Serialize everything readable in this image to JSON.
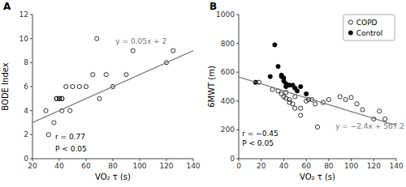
{
  "chart_data": [
    {
      "type": "scatter",
      "title": "A",
      "x_label": "VO₂ τ (s)",
      "y_label": "BODE Index",
      "xlim": [
        20,
        140
      ],
      "ylim": [
        0,
        12
      ],
      "xticks": [
        20,
        40,
        60,
        80,
        100,
        120,
        140
      ],
      "yticks": [
        0,
        2,
        4,
        6,
        8,
        10,
        12
      ],
      "grid": false,
      "series": [
        {
          "type": "scatter",
          "marker": "open-circle",
          "color": "#000000",
          "x": [
            30,
            32,
            36,
            38,
            38,
            40,
            40,
            42,
            42,
            42,
            45,
            48,
            50,
            55,
            60,
            65,
            68,
            70,
            75,
            80,
            90,
            95,
            120,
            125
          ],
          "values": [
            4,
            2,
            3,
            5,
            5,
            5,
            5,
            5,
            5,
            4,
            6,
            4,
            6,
            6,
            6,
            7,
            10,
            5,
            7,
            6,
            7,
            9,
            8,
            9
          ]
        },
        {
          "type": "line",
          "line_style": "solid",
          "color": "#777777",
          "x": [
            20,
            140
          ],
          "values": [
            3,
            9
          ]
        }
      ],
      "annotations": [
        {
          "text": "y = 0.05x + 2",
          "x": 82,
          "y": 9.6,
          "color": "#777777"
        },
        {
          "text": "r = 0.77",
          "x": 37,
          "y": 1.6,
          "color": "#000000"
        },
        {
          "text": "P < 0.05",
          "x": 37,
          "y": 0.6,
          "color": "#000000"
        }
      ]
    },
    {
      "type": "scatter",
      "title": "B",
      "x_label": "VO₂ τ (s)",
      "y_label": "6MWT (m)",
      "xlim": [
        0,
        140
      ],
      "ylim": [
        0,
        1000
      ],
      "xticks": [
        0,
        20,
        40,
        60,
        80,
        100,
        120,
        140
      ],
      "yticks": [
        0,
        200,
        400,
        600,
        800,
        1000
      ],
      "grid": false,
      "legend": "upper right",
      "series": [
        {
          "name": "COPD",
          "type": "scatter",
          "marker": "open-circle",
          "color": "#000000",
          "x": [
            18,
            30,
            35,
            38,
            40,
            42,
            42,
            45,
            45,
            48,
            50,
            50,
            55,
            55,
            60,
            62,
            65,
            68,
            70,
            75,
            80,
            90,
            95,
            100,
            105,
            110,
            120,
            125,
            130
          ],
          "values": [
            530,
            480,
            470,
            450,
            430,
            420,
            460,
            390,
            410,
            380,
            350,
            430,
            300,
            350,
            400,
            410,
            410,
            380,
            220,
            390,
            410,
            430,
            410,
            425,
            380,
            340,
            275,
            330,
            275
          ]
        },
        {
          "name": "Control",
          "type": "scatter",
          "marker": "filled-circle",
          "color": "#000000",
          "x": [
            15,
            28,
            32,
            35,
            38,
            38,
            40,
            40,
            42,
            42,
            45,
            48,
            50,
            52,
            55,
            60
          ],
          "values": [
            530,
            570,
            790,
            640,
            580,
            570,
            560,
            540,
            520,
            500,
            510,
            510,
            490,
            470,
            500,
            450
          ]
        },
        {
          "type": "line",
          "line_style": "solid",
          "color": "#777777",
          "x": [
            0,
            140
          ],
          "values": [
            567.2,
            231.2
          ]
        }
      ],
      "annotations": [
        {
          "text": "y = −2.4x + 567.2",
          "x": 86,
          "y": 210,
          "color": "#777777"
        },
        {
          "text": "r = −0.45",
          "x": 3,
          "y": 160,
          "color": "#000000"
        },
        {
          "text": "P < 0.05",
          "x": 3,
          "y": 90,
          "color": "#000000"
        }
      ]
    }
  ]
}
